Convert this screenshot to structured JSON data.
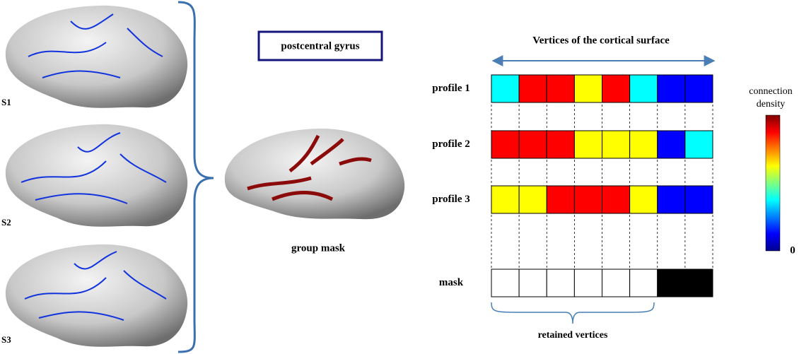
{
  "subjects": [
    "S1",
    "S2",
    "S3"
  ],
  "region_label": "postcentral gyrus",
  "group_mask_label": "group mask",
  "axis_title": "Vertices of the cortical surface",
  "profiles": [
    {
      "name": "profile 1",
      "cells": [
        "#00ffff",
        "#ff0000",
        "#ff0000",
        "#ffff00",
        "#ff0000",
        "#00ffff",
        "#0000ff",
        "#0000ff"
      ]
    },
    {
      "name": "profile 2",
      "cells": [
        "#ff0000",
        "#ff0000",
        "#ff0000",
        "#ffff00",
        "#ffff00",
        "#ffff00",
        "#0000ff",
        "#00ffff"
      ]
    },
    {
      "name": "profile 3",
      "cells": [
        "#ffff00",
        "#ffff00",
        "#ff0000",
        "#ff0000",
        "#ff0000",
        "#ffff00",
        "#0000ff",
        "#0000ff"
      ]
    }
  ],
  "mask": {
    "name": "mask",
    "cells": [
      "#ffffff",
      "#ffffff",
      "#ffffff",
      "#ffffff",
      "#ffffff",
      "#ffffff",
      "#000000",
      "#000000"
    ]
  },
  "retained_label": "retained vertices",
  "colorbar": {
    "title_line1": "connection",
    "title_line2": "density",
    "min_label": "0"
  }
}
